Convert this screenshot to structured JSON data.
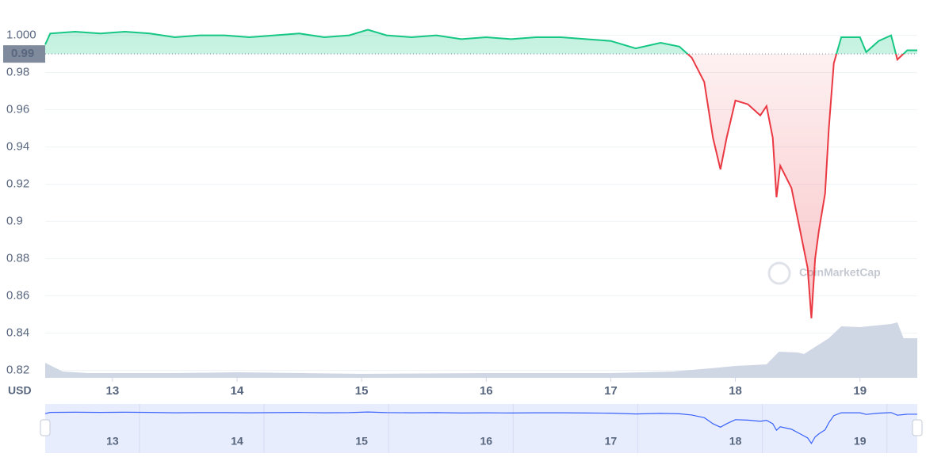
{
  "chart_data": {
    "type": "line",
    "x": [
      12.46,
      12.5,
      12.7,
      12.9,
      13.1,
      13.3,
      13.5,
      13.7,
      13.9,
      14.1,
      14.3,
      14.5,
      14.7,
      14.9,
      15.05,
      15.2,
      15.4,
      15.6,
      15.8,
      16.0,
      16.2,
      16.4,
      16.6,
      16.8,
      17.0,
      17.2,
      17.4,
      17.55,
      17.65,
      17.75,
      17.82,
      17.88,
      17.93,
      18.0,
      18.1,
      18.2,
      18.25,
      18.3,
      18.33,
      18.36,
      18.45,
      18.52,
      18.58,
      18.61,
      18.64,
      18.67,
      18.72,
      18.75,
      18.79,
      18.85,
      19.0,
      19.05,
      19.15,
      19.25,
      19.3,
      19.38,
      19.46
    ],
    "values": [
      0.995,
      1.001,
      1.002,
      1.001,
      1.002,
      1.001,
      0.999,
      1.0,
      1.0,
      0.999,
      1.0,
      1.001,
      0.999,
      1.0,
      1.003,
      1.0,
      0.999,
      1.0,
      0.998,
      0.999,
      0.998,
      0.999,
      0.999,
      0.998,
      0.997,
      0.993,
      0.996,
      0.994,
      0.988,
      0.975,
      0.945,
      0.928,
      0.945,
      0.965,
      0.963,
      0.957,
      0.962,
      0.945,
      0.913,
      0.93,
      0.918,
      0.895,
      0.875,
      0.848,
      0.88,
      0.895,
      0.915,
      0.95,
      0.985,
      0.999,
      0.999,
      0.991,
      0.997,
      1.0,
      0.987,
      0.992,
      0.992
    ],
    "current_price": 0.99,
    "up_color": "#16c784",
    "down_color": "#ea3943",
    "volume": {
      "x": [
        12.46,
        12.6,
        12.8,
        13.5,
        14.0,
        15.0,
        16.0,
        17.0,
        17.5,
        17.8,
        18.0,
        18.25,
        18.3,
        18.35,
        18.5,
        18.55,
        18.75,
        18.85,
        19.0,
        19.25,
        19.3,
        19.35,
        19.46
      ],
      "values": [
        19,
        8,
        6,
        6,
        7,
        5,
        6,
        6,
        8,
        12,
        15,
        17,
        25,
        33,
        32,
        30,
        50,
        65,
        64,
        68,
        70,
        50,
        50
      ],
      "color": "#cfd6e4"
    },
    "xlim": [
      12.46,
      19.46
    ],
    "xticks": [
      13,
      14,
      15,
      16,
      17,
      18,
      19
    ],
    "ylim": [
      0.816,
      1.019
    ],
    "yticks": [
      {
        "value": 1.0,
        "label": "1.000"
      },
      0.98,
      0.96,
      0.94,
      0.92,
      0.9,
      0.88,
      0.86,
      0.84,
      0.82
    ],
    "y_axis_label": "USD",
    "watermark": "CoinMarketCap",
    "grid": true
  }
}
